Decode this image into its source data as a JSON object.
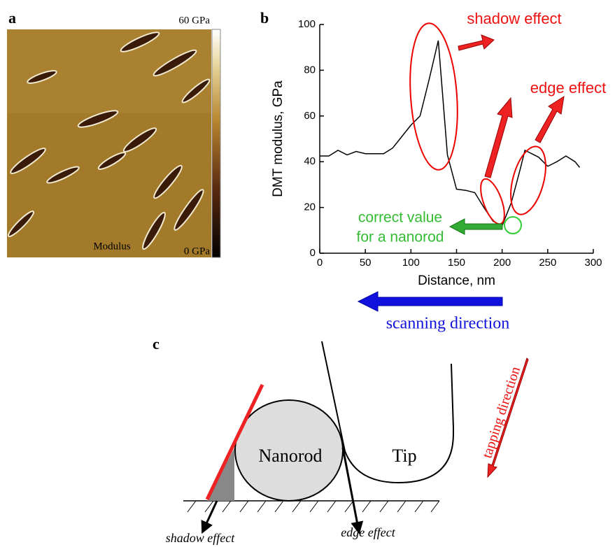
{
  "panel_a": {
    "label": "a",
    "colorbar_max": "60 GPa",
    "colorbar_min": "0 GPa",
    "caption": "Modulus"
  },
  "chart_data": {
    "type": "line",
    "label": "b",
    "x_label": "Distance, nm",
    "y_label": "DMT modulus, GPa",
    "x": [
      0,
      10,
      20,
      30,
      40,
      50,
      60,
      70,
      80,
      90,
      100,
      110,
      120,
      130,
      140,
      150,
      160,
      170,
      180,
      190,
      200,
      210,
      220,
      225,
      230,
      240,
      250,
      260,
      270,
      280,
      285
    ],
    "values": [
      42.5,
      42.5,
      45,
      43,
      44.5,
      43.5,
      43.5,
      43.5,
      46,
      51,
      56,
      60,
      76,
      93,
      43,
      28,
      27.5,
      26.5,
      20,
      14,
      12,
      22,
      37,
      45,
      44,
      42,
      38,
      40,
      42.5,
      40,
      37.5
    ],
    "color": "#000000",
    "xlim": [
      0,
      300
    ],
    "ylim": [
      0,
      100
    ],
    "xticks": [
      0,
      50,
      100,
      150,
      200,
      250,
      300
    ],
    "yticks": [
      0,
      20,
      40,
      60,
      80,
      100
    ],
    "annotations": {
      "shadow": "shadow effect",
      "edge": "edge effect",
      "correct": [
        "correct value",
        "for a nanorod"
      ],
      "scanning": "scanning direction"
    }
  },
  "panel_c": {
    "label": "c",
    "nanorod": "Nanorod",
    "tip": "Tip",
    "tapping": "tapping direction",
    "shadow": "shadow effect",
    "edge": "edge effect"
  }
}
